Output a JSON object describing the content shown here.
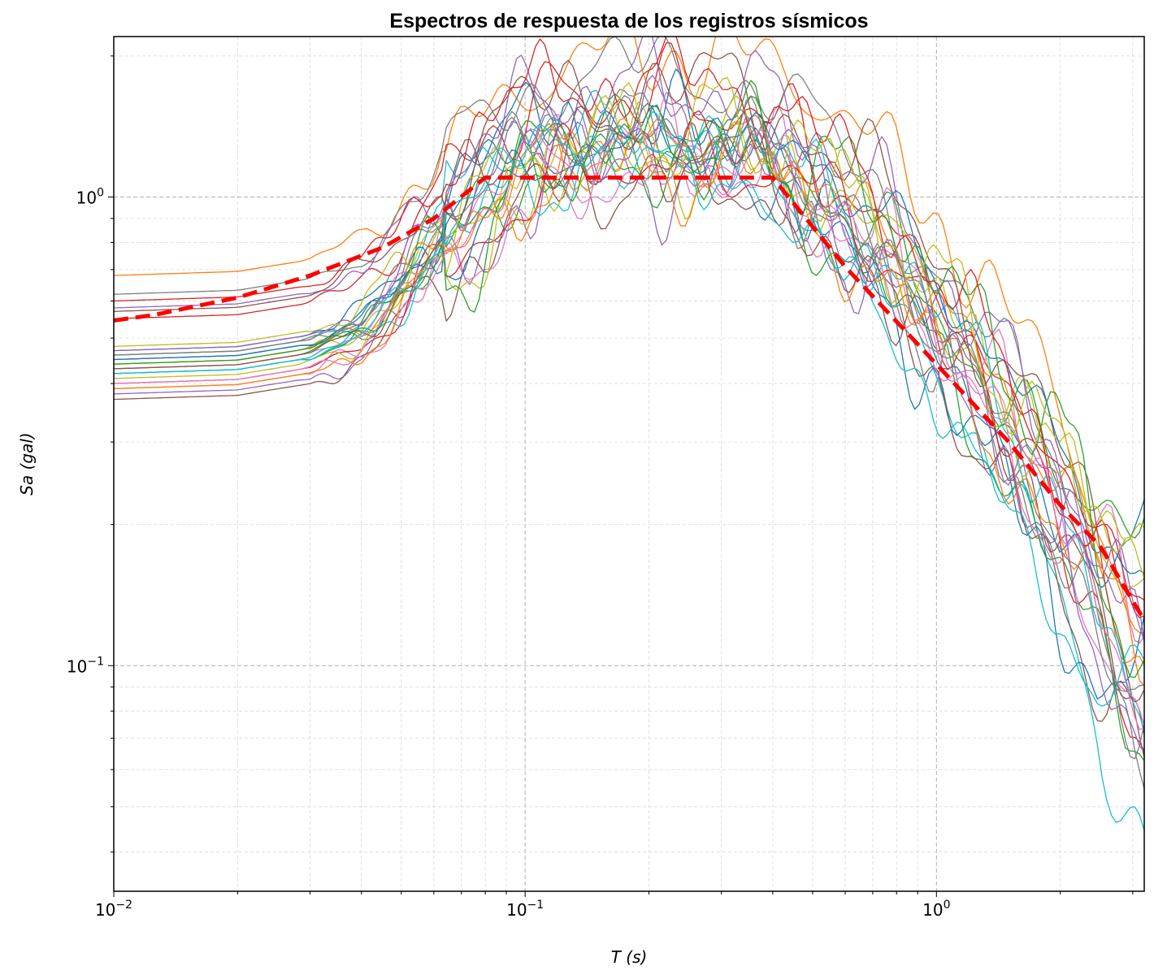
{
  "chart_data": {
    "type": "line",
    "title": "Espectros de respuesta de los registros sísmicos",
    "xlabel": "T (s)",
    "ylabel": "Sa (gal)",
    "xscale": "log",
    "yscale": "log",
    "xlim": [
      0.01,
      3.2
    ],
    "ylim": [
      0.033,
      2.2
    ],
    "grid": true,
    "legend": "none",
    "x_ticks": [
      {
        "value": 0.01,
        "base": "10",
        "exp": "−2"
      },
      {
        "value": 0.1,
        "base": "10",
        "exp": "−1"
      },
      {
        "value": 1,
        "base": "10",
        "exp": "0"
      }
    ],
    "y_ticks": [
      {
        "value": 0.1,
        "base": "10",
        "exp": "−1"
      },
      {
        "value": 1,
        "base": "10",
        "exp": "0"
      }
    ],
    "design_spectrum": {
      "color": "#ff0000",
      "x": [
        0.01,
        0.0125,
        0.02,
        0.03,
        0.045,
        0.06,
        0.08,
        0.4,
        0.6,
        1.0,
        1.5,
        2.0,
        2.5,
        3.2
      ],
      "y": [
        0.545,
        0.56,
        0.61,
        0.68,
        0.78,
        0.9,
        1.1,
        1.1,
        0.71,
        0.44,
        0.3,
        0.22,
        0.18,
        0.125
      ]
    },
    "records": {
      "count": 30,
      "colors": [
        "#1f77b4",
        "#ff7f0e",
        "#2ca02c",
        "#d62728",
        "#9467bd",
        "#8c564b",
        "#e377c2",
        "#7f7f7f",
        "#bcbd22",
        "#17becf"
      ],
      "template_T": [
        0.01,
        0.02,
        0.03,
        0.04,
        0.05,
        0.06,
        0.07,
        0.08,
        0.1,
        0.12,
        0.15,
        0.2,
        0.25,
        0.3,
        0.4,
        0.5,
        0.6,
        0.8,
        1.0,
        1.3,
        1.6,
        2.0,
        2.5,
        3.2
      ],
      "template_shape": [
        1.0,
        1.02,
        1.08,
        1.2,
        1.45,
        1.75,
        2.1,
        2.35,
        2.7,
        2.85,
        2.95,
        3.0,
        2.95,
        2.9,
        2.75,
        2.4,
        2.05,
        1.55,
        1.2,
        0.88,
        0.66,
        0.46,
        0.3,
        0.19
      ],
      "pga": [
        0.45,
        0.68,
        0.43,
        0.55,
        0.38,
        0.37,
        0.39,
        0.62,
        0.44,
        0.46,
        0.47,
        0.44,
        0.42,
        0.4,
        0.58,
        0.57,
        0.43,
        0.46,
        0.41,
        0.42,
        0.45,
        0.39,
        0.44,
        0.6,
        0.47,
        0.43,
        0.4,
        0.46,
        0.48,
        0.42
      ],
      "tail": [
        0.21,
        0.09,
        0.19,
        0.06,
        0.11,
        0.055,
        0.09,
        0.08,
        0.13,
        0.045,
        0.1,
        0.08,
        0.07,
        0.12,
        0.1,
        0.075,
        0.065,
        0.085,
        0.14,
        0.05,
        0.095,
        0.11,
        0.06,
        0.125,
        0.07,
        0.09,
        0.08,
        0.06,
        0.135,
        0.1
      ]
    }
  }
}
